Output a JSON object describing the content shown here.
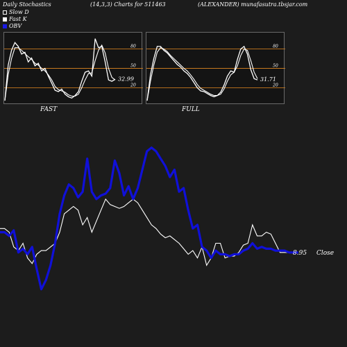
{
  "header": {
    "left": "Daily Stochastics",
    "middle": "(14,3,3) Charts for 511463",
    "right": "(ALEXANDER) munafasutra.tbsjar.com"
  },
  "legend": [
    {
      "label": "Slow  D",
      "color": "#ffffff"
    },
    {
      "label": "Fast K",
      "color": "#ffffff"
    },
    {
      "label": "OBV",
      "color": "#1a1ae6"
    }
  ],
  "colors": {
    "background": "#1c1c1c",
    "panel": "#141414",
    "level_line": "#c87a1e",
    "obv": "#1010d8",
    "close": "#ffffff"
  },
  "chart_data": [
    {
      "type": "line",
      "name": "stoch-fast",
      "title": "FAST",
      "yticks": [
        20,
        50,
        80
      ],
      "ylim": [
        0,
        100
      ],
      "levels": [
        20,
        50,
        80
      ],
      "last_value_label": "32.99",
      "series": [
        {
          "name": "Fast K",
          "values": [
            0,
            55,
            78,
            90,
            84,
            72,
            75,
            60,
            66,
            54,
            58,
            46,
            50,
            38,
            27,
            16,
            14,
            18,
            10,
            6,
            4,
            8,
            14,
            30,
            44,
            46,
            38,
            96,
            82,
            84,
            60,
            32,
            30,
            33
          ]
        },
        {
          "name": "Slow D",
          "values": [
            0,
            40,
            65,
            82,
            82,
            78,
            73,
            68,
            64,
            58,
            55,
            50,
            46,
            40,
            32,
            22,
            17,
            15,
            13,
            9,
            7,
            7,
            10,
            20,
            32,
            42,
            43,
            62,
            78,
            86,
            74,
            50,
            36,
            32
          ]
        }
      ]
    },
    {
      "type": "line",
      "name": "stoch-full",
      "title": "FULL",
      "yticks": [
        20,
        50,
        80
      ],
      "ylim": [
        0,
        100
      ],
      "levels": [
        20,
        50,
        80
      ],
      "last_value_label": "31.71",
      "series": [
        {
          "name": "Fast K",
          "values": [
            0,
            40,
            65,
            84,
            84,
            78,
            74,
            68,
            62,
            56,
            52,
            46,
            42,
            36,
            28,
            20,
            15,
            14,
            11,
            8,
            6,
            8,
            13,
            24,
            38,
            46,
            44,
            64,
            80,
            84,
            72,
            48,
            34,
            32
          ]
        },
        {
          "name": "Slow D",
          "values": [
            0,
            30,
            55,
            75,
            82,
            80,
            76,
            70,
            65,
            60,
            55,
            50,
            46,
            40,
            33,
            25,
            19,
            16,
            13,
            10,
            8,
            8,
            10,
            18,
            30,
            40,
            44,
            54,
            70,
            80,
            78,
            62,
            44,
            34
          ]
        }
      ]
    },
    {
      "type": "line",
      "name": "price-obv",
      "last_value_label": "8.95",
      "close_label": "Close",
      "ylim": [
        0,
        100
      ],
      "series": [
        {
          "name": "OBV",
          "values": [
            36,
            36,
            34,
            37,
            25,
            27,
            24,
            28,
            16,
            5,
            10,
            18,
            30,
            46,
            56,
            62,
            60,
            55,
            58,
            76,
            58,
            54,
            56,
            57,
            60,
            75,
            68,
            56,
            61,
            54,
            60,
            70,
            80,
            82,
            80,
            76,
            72,
            66,
            70,
            58,
            60,
            48,
            38,
            40,
            28,
            26,
            22,
            26,
            24,
            24,
            23,
            24,
            24,
            26,
            27,
            30,
            27,
            28,
            27,
            27,
            26,
            26,
            26,
            25,
            25,
            25
          ]
        },
        {
          "name": "Close",
          "values": [
            38,
            38,
            36,
            28,
            26,
            30,
            22,
            19,
            24,
            26,
            26,
            28,
            30,
            36,
            46,
            48,
            50,
            48,
            40,
            44,
            36,
            42,
            48,
            54,
            51,
            50,
            49,
            50,
            52,
            54,
            52,
            48,
            44,
            40,
            38,
            35,
            33,
            34,
            32,
            30,
            27,
            24,
            26,
            22,
            28,
            18,
            22,
            30,
            30,
            22,
            23,
            23,
            25,
            29,
            30,
            40,
            34,
            34,
            36,
            35,
            30,
            25,
            25,
            25,
            25,
            25
          ]
        }
      ]
    }
  ]
}
